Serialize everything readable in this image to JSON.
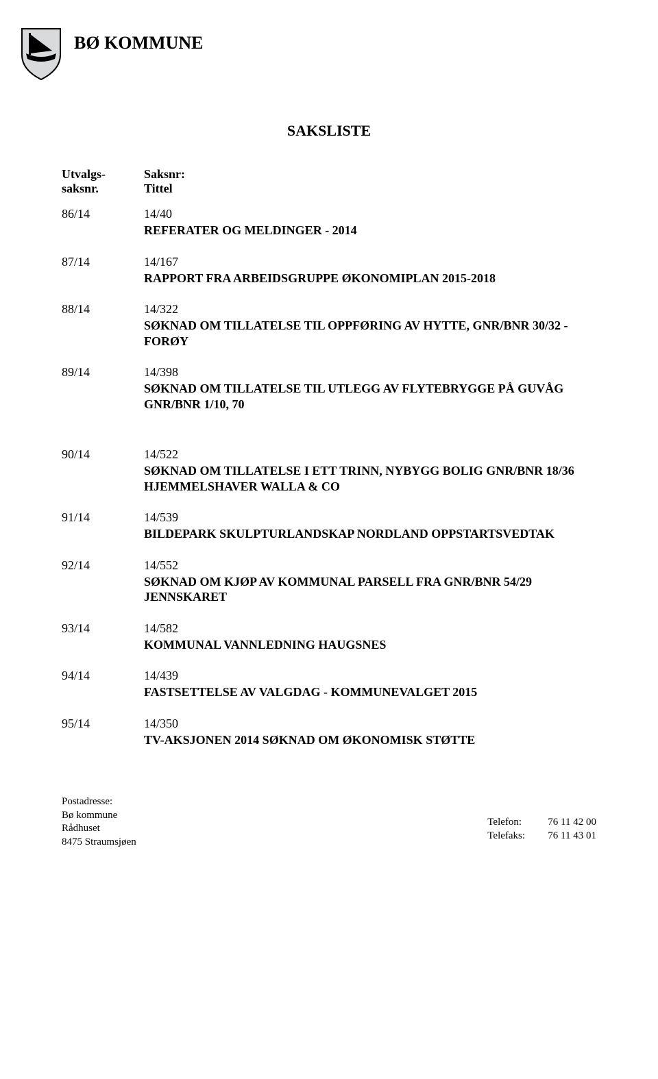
{
  "org_title": "BØ KOMMUNE",
  "list_title": "SAKSLISTE",
  "headers": {
    "col1a": "Utvalgs-",
    "col1b": "saksnr.",
    "col2a": "Saksnr:",
    "col2b": "Tittel"
  },
  "items": [
    {
      "u": "86/14",
      "s": "14/40",
      "title": "REFERATER OG MELDINGER  -  2014"
    },
    {
      "u": "87/14",
      "s": "14/167",
      "title": "RAPPORT FRA ARBEIDSGRUPPE ØKONOMIPLAN 2015-2018"
    },
    {
      "u": "88/14",
      "s": "14/322",
      "title": "SØKNAD OM TILLATELSE TIL OPPFØRING AV HYTTE, GNR/BNR 30/32 - FORØY"
    },
    {
      "u": "89/14",
      "s": "14/398",
      "title": "SØKNAD OM TILLATELSE TIL UTLEGG AV FLYTEBRYGGE PÅ GUVÅG GNR/BNR 1/10, 70"
    },
    {
      "u": "90/14",
      "s": "14/522",
      "title": "SØKNAD OM TILLATELSE I ETT TRINN, NYBYGG BOLIG GNR/BNR 18/36 HJEMMELSHAVER WALLA & CO"
    },
    {
      "u": "91/14",
      "s": "14/539",
      "title": "BILDEPARK SKULPTURLANDSKAP NORDLAND OPPSTARTSVEDTAK"
    },
    {
      "u": "92/14",
      "s": "14/552",
      "title": "SØKNAD OM KJØP AV KOMMUNAL PARSELL FRA GNR/BNR 54/29 JENNSKARET"
    },
    {
      "u": "93/14",
      "s": "14/582",
      "title": "KOMMUNAL VANNLEDNING HAUGSNES"
    },
    {
      "u": "94/14",
      "s": "14/439",
      "title": "FASTSETTELSE AV VALGDAG - KOMMUNEVALGET 2015"
    },
    {
      "u": "95/14",
      "s": "14/350",
      "title": "TV-AKSJONEN 2014 SØKNAD OM ØKONOMISK STØTTE"
    }
  ],
  "extra_gap_before_index": 4,
  "footer": {
    "left": {
      "l1": "Postadresse:",
      "l2": "Bø kommune",
      "l3": "Rådhuset",
      "l4": "8475 Straumsjøen"
    },
    "right": {
      "r1_label": "Telefon:",
      "r1_value": "76 11 42 00",
      "r2_label": "Telefaks:",
      "r2_value": "76 11 43 01"
    }
  },
  "logo_colors": {
    "shield_fill": "#d9dadb",
    "shield_stroke": "#000000",
    "boat_fill": "#000000"
  }
}
